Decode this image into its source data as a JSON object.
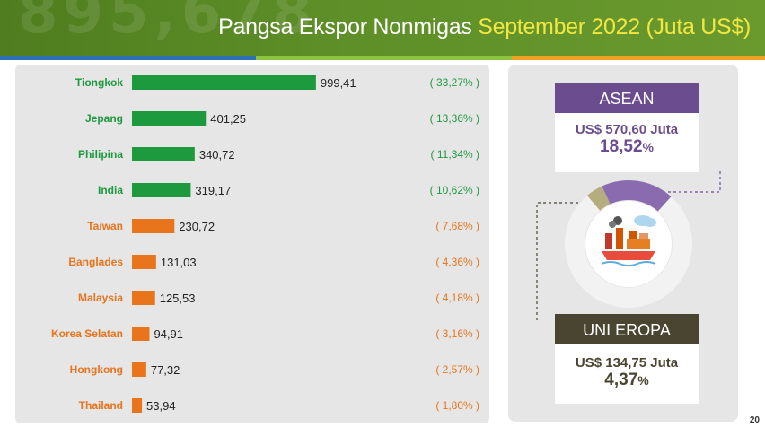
{
  "header": {
    "title_main": "Pangsa Ekspor Nonmigas",
    "title_highlight": "September 2022 (Juta US$)",
    "watermark": "895,678"
  },
  "colors": {
    "banner": "#5e8f28",
    "bar_green": "#1e9a3e",
    "bar_orange": "#e8741c",
    "label_green": "#1e9a3e",
    "label_orange": "#e8741c",
    "asean": "#6b4c8f",
    "eu": "#4a4530",
    "stripe_blue": "#2f6fb5",
    "stripe_green": "#8cc63f",
    "stripe_orange": "#f0a020"
  },
  "chart_data": {
    "type": "bar",
    "orientation": "horizontal",
    "categories": [
      "Tiongkok",
      "Jepang",
      "Philipina",
      "India",
      "Taiwan",
      "Banglades",
      "Malaysia",
      "Korea Selatan",
      "Hongkong",
      "Thailand"
    ],
    "values": [
      999.41,
      401.25,
      340.72,
      319.17,
      230.72,
      131.03,
      125.53,
      94.91,
      77.32,
      53.94
    ],
    "value_labels": [
      "999,41",
      "401,25",
      "340,72",
      "319,17",
      "230,72",
      "131,03",
      "125,53",
      "94,91",
      "77,32",
      "53,94"
    ],
    "share_labels": [
      "( 33,27% )",
      "( 13,36% )",
      "( 11,34% )",
      "( 10,62% )",
      "( 7,68% )",
      "( 4,36% )",
      "( 4,18% )",
      "( 3,16% )",
      "( 2,57% )",
      "( 1,80% )"
    ],
    "highlight_top_n": 4,
    "xlim": [
      0,
      1000
    ]
  },
  "asean": {
    "title": "ASEAN",
    "value": "US$ 570,60 Juta",
    "percent_num": "18,52",
    "percent_sign": "%",
    "share": 0.1852
  },
  "eu": {
    "title": "UNI EROPA",
    "value": "US$ 134,75 Juta",
    "percent_num": "4,37",
    "percent_sign": "%",
    "share": 0.0437
  },
  "page_number": "20"
}
